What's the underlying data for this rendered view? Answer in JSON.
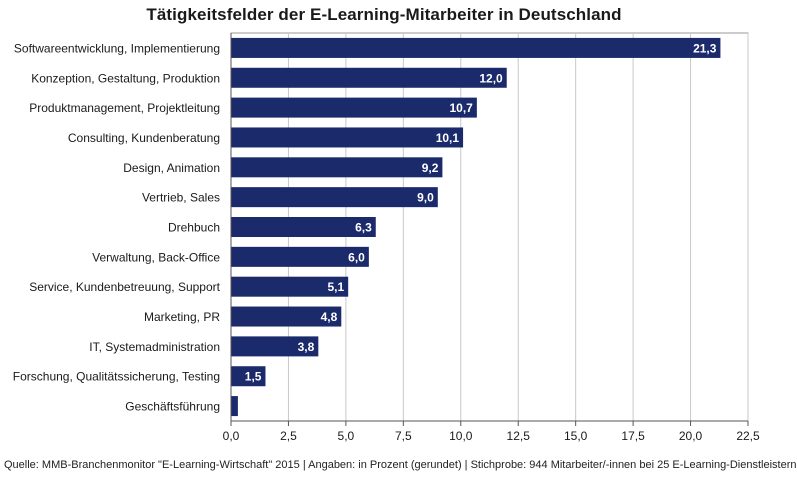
{
  "chart_data": {
    "type": "bar",
    "orientation": "horizontal",
    "title": "Tätigkeitsfelder der E-Learning-Mitarbeiter  in Deutschland",
    "categories": [
      "Softwareentwicklung, Implementierung",
      "Konzeption, Gestaltung, Produktion",
      "Produktmanagement, Projektleitung",
      "Consulting, Kundenberatung",
      "Design, Animation",
      "Vertrieb, Sales",
      "Drehbuch",
      "Verwaltung, Back-Office",
      "Service, Kundenbetreuung, Support",
      "Marketing, PR",
      "IT, Systemadministration",
      "Forschung, Qualitätssicherung, Testing",
      "Geschäftsführung"
    ],
    "values": [
      21.3,
      12.0,
      10.7,
      10.1,
      9.2,
      9.0,
      6.3,
      6.0,
      5.1,
      4.8,
      3.8,
      1.5,
      0.3
    ],
    "value_labels": [
      "21,3",
      "12,0",
      "10,7",
      "10,1",
      "9,2",
      "9,0",
      "6,3",
      "6,0",
      "5,1",
      "4,8",
      "3,8",
      "1,5",
      ""
    ],
    "xlim": [
      0,
      22.5
    ],
    "xticks": [
      0,
      2.5,
      5,
      7.5,
      10,
      12.5,
      15,
      17.5,
      20,
      22.5
    ],
    "xtick_labels": [
      "0,0",
      "2,5",
      "5,0",
      "7,5",
      "10,0",
      "12,5",
      "15,0",
      "17,5",
      "20,0",
      "22,5"
    ],
    "grid": "vertical",
    "bar_color": "#1b2a6b",
    "grid_color": "#c8c8c8"
  },
  "source": "Quelle: MMB-Branchenmonitor \"E-Learning-Wirtschaft\" 2015 | Angaben: in Prozent (gerundet) | Stichprobe: 944 Mitarbeiter/-innen bei 25 E-Learning-Dienstleistern"
}
